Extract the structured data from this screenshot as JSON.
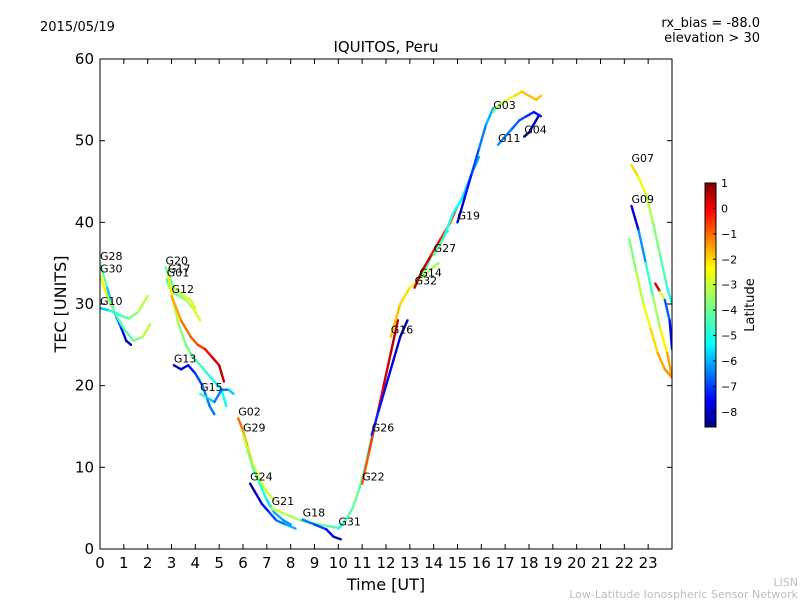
{
  "header": {
    "date": "2015/05/19",
    "title": "IQUITOS, Peru",
    "rx_bias": "rx_bias = -88.0",
    "elevation": "elevation > 30"
  },
  "footer": {
    "org_short": "LISN",
    "org_long": "Low-Latitude Ionospheric Sensor Network"
  },
  "colorbar": {
    "label": "Latitude",
    "min": -8.6,
    "max": 1.0,
    "ticks": [
      "1",
      "0",
      "−1",
      "−2",
      "−3",
      "−4",
      "−5",
      "−6",
      "−7",
      "−8"
    ],
    "tick_values": [
      1,
      0,
      -1,
      -2,
      -3,
      -4,
      -5,
      -6,
      -7,
      -8
    ],
    "colormap": "jet"
  },
  "chart_data": {
    "type": "scatter",
    "xlabel": "Time [UT]",
    "ylabel": "TEC [UNITS]",
    "xlim": [
      0,
      24
    ],
    "ylim": [
      0,
      60
    ],
    "x_ticks": [
      "0",
      "1",
      "2",
      "3",
      "4",
      "5",
      "6",
      "7",
      "8",
      "9",
      "10",
      "11",
      "12",
      "13",
      "14",
      "15",
      "16",
      "17",
      "18",
      "19",
      "20",
      "21",
      "22",
      "23"
    ],
    "y_ticks": [
      "0",
      "10",
      "20",
      "30",
      "40",
      "50",
      "60"
    ],
    "satellites": [
      {
        "name": "G28",
        "x": [
          0.0,
          0.3,
          0.6,
          0.9,
          1.1,
          1.3
        ],
        "y": [
          35,
          32,
          29,
          27,
          25.5,
          25
        ],
        "lat": [
          -3,
          -5,
          -6,
          -7,
          -8,
          -8.5
        ]
      },
      {
        "name": "G30",
        "x": [
          0.0,
          0.3,
          0.6,
          1.0,
          1.4,
          1.8,
          2.1
        ],
        "y": [
          33.5,
          31,
          29,
          27,
          25.5,
          26,
          27.5
        ],
        "lat": [
          -2,
          -3,
          -4,
          -4.5,
          -4,
          -3.5,
          -3
        ]
      },
      {
        "name": "G10",
        "x": [
          0.0,
          0.4,
          0.8,
          1.2,
          1.6,
          2.0
        ],
        "y": [
          29.5,
          29.2,
          28.7,
          28.2,
          29.0,
          31.0
        ],
        "lat": [
          -6,
          -5,
          -4.5,
          -4,
          -3.5,
          -3
        ]
      },
      {
        "name": "G20",
        "x": [
          2.75,
          3.1,
          3.5,
          3.8,
          4.0
        ],
        "y": [
          34.5,
          32,
          31,
          30.5,
          29.5
        ],
        "lat": [
          -4.5,
          -3.5,
          -3,
          -3,
          -3
        ]
      },
      {
        "name": "G01",
        "x": [
          2.8,
          3.0,
          3.3,
          3.6,
          3.9,
          4.2
        ],
        "y": [
          33,
          31.5,
          31,
          30.5,
          29.5,
          28
        ],
        "lat": [
          -5,
          -4.5,
          -4,
          -3.5,
          -3,
          -3
        ]
      },
      {
        "name": "G17",
        "x": [
          2.85,
          3.1,
          3.3,
          3.6,
          3.9,
          4.2,
          4.5,
          4.8,
          5.1,
          5.3
        ],
        "y": [
          33.5,
          30,
          27.5,
          25,
          23.5,
          22.5,
          21.5,
          20.5,
          19.5,
          17.5
        ],
        "lat": [
          -2,
          -3,
          -3.5,
          -4,
          -4,
          -4.5,
          -4.5,
          -5,
          -5,
          -5
        ]
      },
      {
        "name": "G12",
        "x": [
          3.0,
          3.4,
          3.8,
          4.1,
          4.4,
          4.7,
          5.0,
          5.2
        ],
        "y": [
          31,
          28,
          26,
          25,
          24.5,
          23.5,
          22.5,
          20.5
        ],
        "lat": [
          -2,
          -1.5,
          -1,
          -1,
          -0.5,
          0,
          0.5,
          0.5
        ]
      },
      {
        "name": "G13",
        "x": [
          3.1,
          3.4,
          3.7,
          4.0,
          4.3,
          4.6,
          4.8
        ],
        "y": [
          22.5,
          22,
          22.5,
          21.5,
          20,
          17.5,
          16.5
        ],
        "lat": [
          -8.5,
          -8,
          -7.5,
          -7,
          -6.5,
          -6,
          -6.5
        ]
      },
      {
        "name": "G15",
        "x": [
          4.2,
          4.5,
          4.8,
          5.1,
          5.4,
          5.6
        ],
        "y": [
          19,
          18.5,
          18,
          19.5,
          19.5,
          19
        ],
        "lat": [
          -4,
          -5,
          -6,
          -6.5,
          -6,
          -5
        ]
      },
      {
        "name": "G02",
        "x": [
          5.8,
          6.0,
          6.2,
          6.4,
          6.7,
          7.0,
          7.3
        ],
        "y": [
          16,
          14.5,
          12.5,
          10.5,
          8.5,
          7,
          6
        ],
        "lat": [
          -1,
          -1.5,
          -2,
          -2.5,
          -3,
          -3,
          -3
        ]
      },
      {
        "name": "G29",
        "x": [
          6.0,
          6.2,
          6.4,
          6.7,
          7.0,
          7.3,
          7.7,
          8.0
        ],
        "y": [
          14,
          12,
          10,
          8,
          6,
          4.5,
          3.5,
          3
        ],
        "lat": [
          -3,
          -3.5,
          -4,
          -4.5,
          -5,
          -5.5,
          -6,
          -6
        ]
      },
      {
        "name": "G24",
        "x": [
          6.3,
          6.5,
          6.8,
          7.1,
          7.4,
          7.8,
          8.2
        ],
        "y": [
          8,
          7,
          5.5,
          4.5,
          3.5,
          3,
          2.5
        ],
        "lat": [
          -8.5,
          -8,
          -7.5,
          -7,
          -6.5,
          -6,
          -5.5
        ]
      },
      {
        "name": "G21",
        "x": [
          7.2,
          7.6,
          8.0,
          8.4,
          8.8,
          9.2,
          9.6,
          10.0
        ],
        "y": [
          5,
          4.5,
          4,
          3.5,
          3.2,
          3,
          2.8,
          2.6
        ],
        "lat": [
          -3,
          -3,
          -3.5,
          -3.5,
          -4,
          -4,
          -4,
          -4.5
        ]
      },
      {
        "name": "G18",
        "x": [
          8.5,
          9.0,
          9.5,
          9.8,
          10.1
        ],
        "y": [
          3.6,
          3,
          2.4,
          1.5,
          1.2
        ],
        "lat": [
          -6,
          -6.5,
          -7,
          -8,
          -8.5
        ]
      },
      {
        "name": "G31",
        "x": [
          10.0,
          10.3,
          10.6,
          10.9,
          11.2,
          11.5
        ],
        "y": [
          2.5,
          3.5,
          5,
          7.5,
          11,
          15
        ],
        "lat": [
          -5,
          -4.5,
          -4,
          -4,
          -4.5,
          -5
        ]
      },
      {
        "name": "G22",
        "x": [
          11.0,
          11.3,
          11.6,
          11.9,
          12.2,
          12.5
        ],
        "y": [
          8,
          12,
          16,
          20,
          24,
          28
        ],
        "lat": [
          -1,
          -1,
          -0.5,
          0,
          0.5,
          0.5
        ]
      },
      {
        "name": "G26",
        "x": [
          11.4,
          11.7,
          12.0,
          12.3,
          12.6,
          12.9
        ],
        "y": [
          14,
          17,
          20,
          23,
          26,
          28
        ],
        "lat": [
          -7,
          -7,
          -7.5,
          -7.5,
          -8,
          -8
        ]
      },
      {
        "name": "G16",
        "x": [
          12.2,
          12.6,
          13.0,
          13.4,
          13.8,
          14.2
        ],
        "y": [
          26,
          30,
          32,
          33,
          34,
          35
        ],
        "lat": [
          -2,
          -2,
          -2.5,
          -3,
          -3.5,
          -3.5
        ]
      },
      {
        "name": "G14",
        "x": [
          13.4,
          13.7,
          14.0,
          14.3,
          14.6
        ],
        "y": [
          33,
          34.5,
          36.5,
          38,
          39
        ],
        "lat": [
          -4,
          -4,
          -4.5,
          -4.5,
          -5
        ]
      },
      {
        "name": "G32",
        "x": [
          13.2,
          13.5,
          13.9,
          14.3,
          14.7,
          15.0
        ],
        "y": [
          32,
          34,
          36,
          38,
          40,
          42
        ],
        "lat": [
          0.5,
          0.5,
          0,
          -0.5,
          -0.5,
          -1
        ]
      },
      {
        "name": "G27",
        "x": [
          14.0,
          14.4,
          14.8,
          15.2,
          15.6,
          15.9
        ],
        "y": [
          36,
          38,
          41,
          43,
          46,
          48
        ],
        "lat": [
          -4,
          -4.5,
          -5,
          -5,
          -5.5,
          -6
        ]
      },
      {
        "name": "G19",
        "x": [
          15.0,
          15.3,
          15.6,
          15.9,
          16.2,
          16.5
        ],
        "y": [
          40,
          43,
          46,
          49,
          52,
          54
        ],
        "lat": [
          -8,
          -7.5,
          -7,
          -6.5,
          -6,
          -5.5
        ]
      },
      {
        "name": "G03",
        "x": [
          16.5,
          16.8,
          17.1,
          17.4,
          17.7,
          18.0,
          18.3,
          18.5
        ],
        "y": [
          53.5,
          54.5,
          55,
          55.5,
          56,
          55.5,
          55,
          55.5
        ],
        "lat": [
          -4,
          -3.5,
          -3,
          -2.5,
          -2,
          -2,
          -2,
          -2
        ]
      },
      {
        "name": "G11",
        "x": [
          16.7,
          17.0,
          17.3,
          17.6,
          17.9,
          18.2,
          18.5
        ],
        "y": [
          49.5,
          50.5,
          51.5,
          52.5,
          53,
          53.5,
          53
        ],
        "lat": [
          -6,
          -6,
          -6.5,
          -6.5,
          -7,
          -7,
          -7.5
        ]
      },
      {
        "name": "G04",
        "x": [
          17.8,
          18.0,
          18.2,
          18.4
        ],
        "y": [
          50.5,
          51,
          52,
          53
        ],
        "lat": [
          -8.5,
          -8.5,
          -8,
          -8
        ]
      },
      {
        "name": "G07",
        "x": [
          22.3,
          22.6,
          22.9,
          23.2,
          23.5,
          23.8,
          24.0
        ],
        "y": [
          47,
          45.5,
          43.5,
          40,
          36,
          32,
          30
        ],
        "lat": [
          -2,
          -2.5,
          -3,
          -3.5,
          -4,
          -4.5,
          -5
        ]
      },
      {
        "name": "G09",
        "x": [
          22.3,
          22.6,
          22.9,
          23.2,
          23.5,
          23.8,
          24.0
        ],
        "y": [
          42,
          39,
          35,
          31,
          27,
          24,
          21
        ],
        "lat": [
          -8.5,
          -7,
          -5,
          -4,
          -3,
          -2,
          -1.5
        ]
      },
      {
        "name": "",
        "x": [
          22.2,
          22.5,
          22.8,
          23.1,
          23.4,
          23.7,
          24.0
        ],
        "y": [
          38,
          34,
          30,
          27,
          24,
          22,
          21
        ],
        "lat": [
          -4,
          -3.5,
          -3,
          -2.5,
          -2,
          -1.5,
          -1.5
        ]
      },
      {
        "name": "",
        "x": [
          23.3,
          23.5,
          23.7,
          23.9,
          24.0
        ],
        "y": [
          32.5,
          31.5,
          30.5,
          28,
          24.5
        ],
        "lat": [
          0.5,
          0,
          -6,
          -7,
          -7.5
        ]
      }
    ]
  }
}
